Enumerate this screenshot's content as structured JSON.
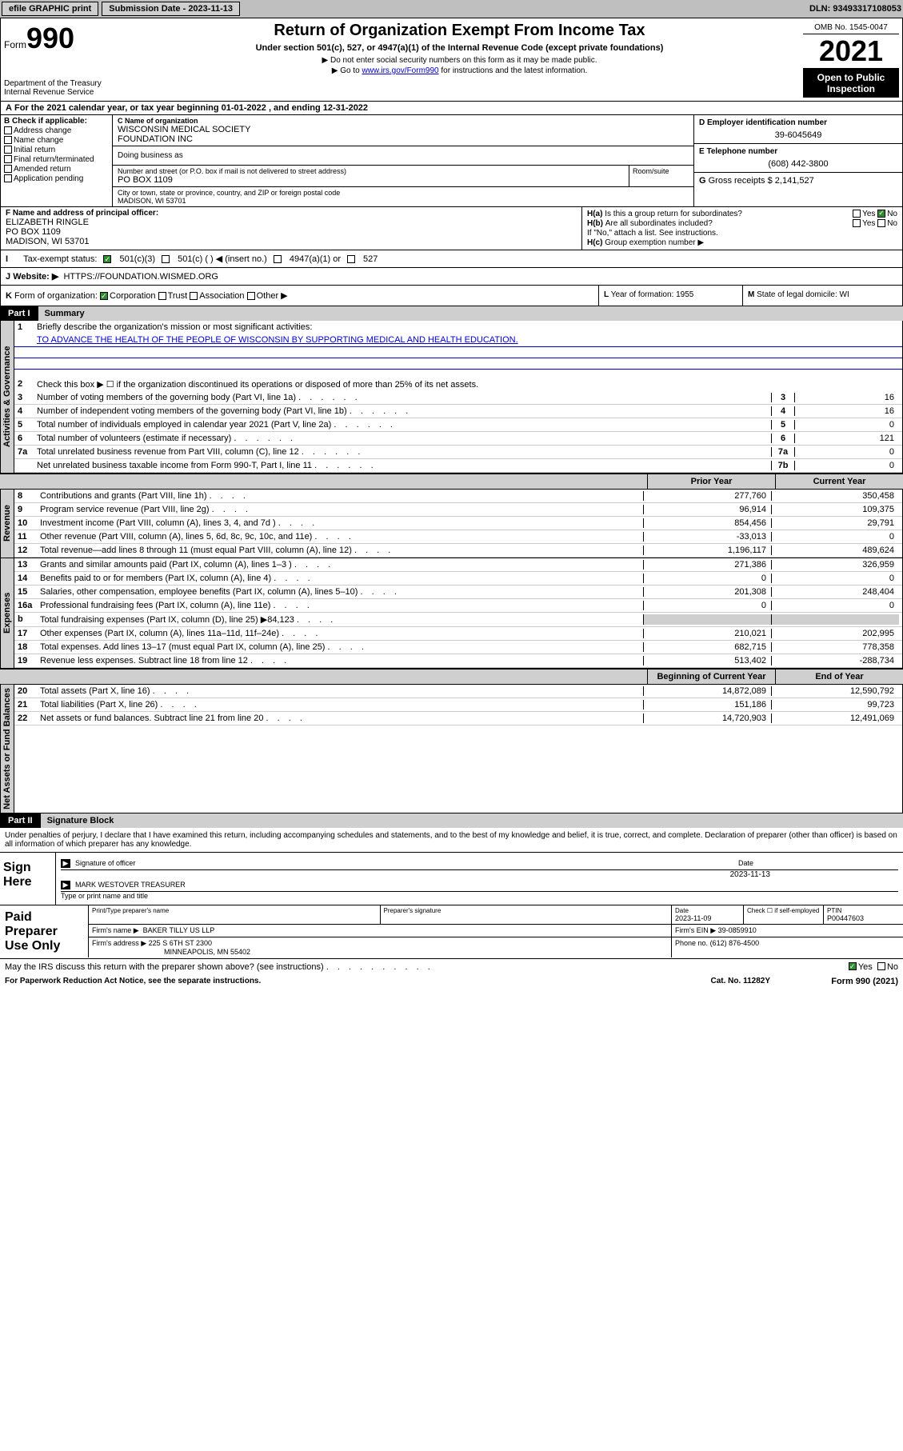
{
  "topbar": {
    "efile": "efile GRAPHIC print",
    "sub_label": "Submission Date - 2023-11-13",
    "dln": "DLN: 93493317108053"
  },
  "header": {
    "form_label": "Form",
    "form_number": "990",
    "title": "Return of Organization Exempt From Income Tax",
    "subtitle": "Under section 501(c), 527, or 4947(a)(1) of the Internal Revenue Code (except private foundations)",
    "note1": "Do not enter social security numbers on this form as it may be made public.",
    "note2_prefix": "Go to ",
    "note2_link": "www.irs.gov/Form990",
    "note2_suffix": " for instructions and the latest information.",
    "dept": "Department of the Treasury",
    "irs": "Internal Revenue Service",
    "omb": "OMB No. 1545-0047",
    "year": "2021",
    "open": "Open to Public Inspection"
  },
  "line_a": "For the 2021 calendar year, or tax year beginning 01-01-2022   , and ending 12-31-2022",
  "section_b": {
    "header": "Check if applicable:",
    "items": [
      "Address change",
      "Name change",
      "Initial return",
      "Final return/terminated",
      "Amended return",
      "Application pending"
    ]
  },
  "section_c": {
    "name_label": "Name of organization",
    "name1": "WISCONSIN MEDICAL SOCIETY",
    "name2": "FOUNDATION INC",
    "dba_label": "Doing business as",
    "street_label": "Number and street (or P.O. box if mail is not delivered to street address)",
    "street": "PO BOX 1109",
    "room_label": "Room/suite",
    "city_label": "City or town, state or province, country, and ZIP or foreign postal code",
    "city": "MADISON, WI  53701"
  },
  "section_d": {
    "label": "Employer identification number",
    "val": "39-6045649"
  },
  "section_e": {
    "label": "Telephone number",
    "val": "(608) 442-3800"
  },
  "section_g": {
    "label": "Gross receipts $",
    "val": "2,141,527"
  },
  "section_f": {
    "label": "Name and address of principal officer:",
    "name": "ELIZABETH RINGLE",
    "addr1": "PO BOX 1109",
    "addr2": "MADISON, WI  53701"
  },
  "section_h": {
    "a_label": "Is this a group return for subordinates?",
    "b_label": "Are all subordinates included?",
    "b_note": "If \"No,\" attach a list. See instructions.",
    "c_label": "Group exemption number ▶",
    "yes": "Yes",
    "no": "No"
  },
  "section_i": {
    "label": "Tax-exempt status:",
    "opts": [
      "501(c)(3)",
      "501(c) (  ) ◀ (insert no.)",
      "4947(a)(1) or",
      "527"
    ]
  },
  "section_j": {
    "label": "Website: ▶",
    "val": "HTTPS://FOUNDATION.WISMED.ORG"
  },
  "section_k": {
    "label": "Form of organization:",
    "opts": [
      "Corporation",
      "Trust",
      "Association",
      "Other ▶"
    ]
  },
  "section_l": {
    "label": "Year of formation:",
    "val": "1955"
  },
  "section_m": {
    "label": "State of legal domicile:",
    "val": "WI"
  },
  "part1": {
    "label": "Part I",
    "title": "Summary"
  },
  "summary": {
    "line1_label": "Briefly describe the organization's mission or most significant activities:",
    "line1_text": "TO ADVANCE THE HEALTH OF THE PEOPLE OF WISCONSIN BY SUPPORTING MEDICAL AND HEALTH EDUCATION.",
    "line2": "Check this box ▶ ☐  if the organization discontinued its operations or disposed of more than 25% of its net assets.",
    "gov_label": "Activities & Governance",
    "rev_label": "Revenue",
    "exp_label": "Expenses",
    "net_label": "Net Assets or Fund Balances",
    "prior_hdr": "Prior Year",
    "curr_hdr": "Current Year",
    "begin_hdr": "Beginning of Current Year",
    "end_hdr": "End of Year",
    "rows_top": [
      {
        "n": "3",
        "t": "Number of voting members of the governing body (Part VI, line 1a)",
        "box": "3",
        "v": "16"
      },
      {
        "n": "4",
        "t": "Number of independent voting members of the governing body (Part VI, line 1b)",
        "box": "4",
        "v": "16"
      },
      {
        "n": "5",
        "t": "Total number of individuals employed in calendar year 2021 (Part V, line 2a)",
        "box": "5",
        "v": "0"
      },
      {
        "n": "6",
        "t": "Total number of volunteers (estimate if necessary)",
        "box": "6",
        "v": "121"
      },
      {
        "n": "7a",
        "t": "Total unrelated business revenue from Part VIII, column (C), line 12",
        "box": "7a",
        "v": "0"
      },
      {
        "n": "",
        "t": "Net unrelated business taxable income from Form 990-T, Part I, line 11",
        "box": "7b",
        "v": "0"
      }
    ],
    "rows_rev": [
      {
        "n": "8",
        "t": "Contributions and grants (Part VIII, line 1h)",
        "p": "277,760",
        "c": "350,458"
      },
      {
        "n": "9",
        "t": "Program service revenue (Part VIII, line 2g)",
        "p": "96,914",
        "c": "109,375"
      },
      {
        "n": "10",
        "t": "Investment income (Part VIII, column (A), lines 3, 4, and 7d )",
        "p": "854,456",
        "c": "29,791"
      },
      {
        "n": "11",
        "t": "Other revenue (Part VIII, column (A), lines 5, 6d, 8c, 9c, 10c, and 11e)",
        "p": "-33,013",
        "c": "0"
      },
      {
        "n": "12",
        "t": "Total revenue—add lines 8 through 11 (must equal Part VIII, column (A), line 12)",
        "p": "1,196,117",
        "c": "489,624"
      }
    ],
    "rows_exp": [
      {
        "n": "13",
        "t": "Grants and similar amounts paid (Part IX, column (A), lines 1–3 )",
        "p": "271,386",
        "c": "326,959"
      },
      {
        "n": "14",
        "t": "Benefits paid to or for members (Part IX, column (A), line 4)",
        "p": "0",
        "c": "0"
      },
      {
        "n": "15",
        "t": "Salaries, other compensation, employee benefits (Part IX, column (A), lines 5–10)",
        "p": "201,308",
        "c": "248,404"
      },
      {
        "n": "16a",
        "t": "Professional fundraising fees (Part IX, column (A), line 11e)",
        "p": "0",
        "c": "0"
      },
      {
        "n": "b",
        "t": "Total fundraising expenses (Part IX, column (D), line 25) ▶84,123",
        "p": "",
        "c": "",
        "shade": true
      },
      {
        "n": "17",
        "t": "Other expenses (Part IX, column (A), lines 11a–11d, 11f–24e)",
        "p": "210,021",
        "c": "202,995"
      },
      {
        "n": "18",
        "t": "Total expenses. Add lines 13–17 (must equal Part IX, column (A), line 25)",
        "p": "682,715",
        "c": "778,358"
      },
      {
        "n": "19",
        "t": "Revenue less expenses. Subtract line 18 from line 12",
        "p": "513,402",
        "c": "-288,734"
      }
    ],
    "rows_net": [
      {
        "n": "20",
        "t": "Total assets (Part X, line 16)",
        "p": "14,872,089",
        "c": "12,590,792"
      },
      {
        "n": "21",
        "t": "Total liabilities (Part X, line 26)",
        "p": "151,186",
        "c": "99,723"
      },
      {
        "n": "22",
        "t": "Net assets or fund balances. Subtract line 21 from line 20",
        "p": "14,720,903",
        "c": "12,491,069"
      }
    ]
  },
  "part2": {
    "label": "Part II",
    "title": "Signature Block"
  },
  "sig": {
    "note": "Under penalties of perjury, I declare that I have examined this return, including accompanying schedules and statements, and to the best of my knowledge and belief, it is true, correct, and complete. Declaration of preparer (other than officer) is based on all information of which preparer has any knowledge.",
    "sign_here": "Sign Here",
    "sig_label": "Signature of officer",
    "date_label": "Date",
    "date_val": "2023-11-13",
    "name": "MARK WESTOVER  TREASURER",
    "name_label": "Type or print name and title"
  },
  "prep": {
    "label": "Paid Preparer Use Only",
    "print_label": "Print/Type preparer's name",
    "sig_label": "Preparer's signature",
    "date_label": "Date",
    "date": "2023-11-09",
    "check_label": "Check ☐ if self-employed",
    "ptin_label": "PTIN",
    "ptin": "P00447603",
    "firm_name_label": "Firm's name   ▶",
    "firm_name": "BAKER TILLY US LLP",
    "ein_label": "Firm's EIN ▶",
    "ein": "39-0859910",
    "addr_label": "Firm's address ▶",
    "addr1": "225 S 6TH ST 2300",
    "addr2": "MINNEAPOLIS, MN  55402",
    "phone_label": "Phone no.",
    "phone": "(612) 876-4500"
  },
  "discuss": {
    "text": "May the IRS discuss this return with the preparer shown above? (see instructions)",
    "yes": "Yes",
    "no": "No"
  },
  "footer": {
    "left": "For Paperwork Reduction Act Notice, see the separate instructions.",
    "mid": "Cat. No. 11282Y",
    "right": "Form 990 (2021)"
  }
}
